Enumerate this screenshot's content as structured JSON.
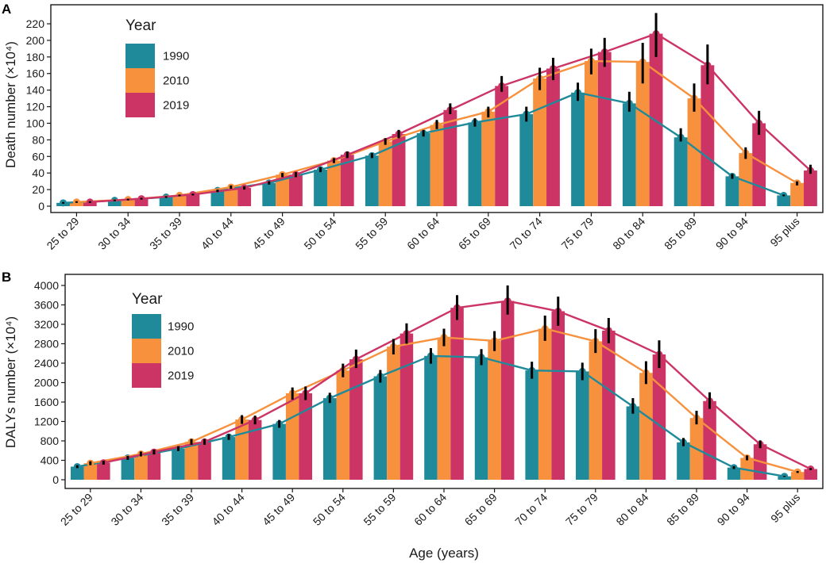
{
  "chart_data": [
    {
      "type": "bar",
      "panel": "A",
      "title": "",
      "xlabel": "",
      "ylabel": "Death number (×10⁴)",
      "ylim": [
        0,
        230
      ],
      "yticks": [
        0,
        20,
        40,
        60,
        80,
        100,
        120,
        140,
        160,
        180,
        200,
        220
      ],
      "categories": [
        "25 to 29",
        "30 to 34",
        "35 to 39",
        "40 to 44",
        "45 to 49",
        "50 to 54",
        "55 to 59",
        "60 to 64",
        "65 to 69",
        "70 to 74",
        "75 to 79",
        "80 to 84",
        "85 to 89",
        "90 to 94",
        "95 plus"
      ],
      "legend_title": "Year",
      "legend_position": "top-left",
      "series": [
        {
          "name": "1990",
          "color": "#1f8a9a",
          "values": [
            4,
            7,
            11,
            19,
            28,
            44,
            61,
            88,
            101,
            111,
            137,
            124,
            83,
            36,
            13
          ],
          "lower": [
            3,
            6,
            10,
            17,
            26,
            41,
            58,
            84,
            96,
            102,
            127,
            114,
            78,
            33,
            12
          ],
          "upper": [
            5,
            8,
            12,
            20,
            30,
            47,
            64,
            92,
            106,
            120,
            149,
            138,
            94,
            39,
            14
          ]
        },
        {
          "name": "2010",
          "color": "#f7913d",
          "values": [
            5,
            8,
            13,
            23,
            38,
            55,
            78,
            98,
            114,
            154,
            175,
            174,
            130,
            64,
            28
          ],
          "lower": [
            4,
            7,
            12,
            21,
            35,
            52,
            74,
            93,
            107,
            140,
            159,
            148,
            114,
            57,
            25
          ],
          "upper": [
            6,
            9,
            14,
            25,
            40,
            58,
            82,
            104,
            120,
            167,
            190,
            197,
            148,
            71,
            30
          ]
        },
        {
          "name": "2019",
          "color": "#cd3466",
          "values": [
            5,
            9,
            14,
            22,
            38,
            62,
            87,
            116,
            145,
            166,
            186,
            208,
            170,
            100,
            43
          ],
          "lower": [
            4,
            8,
            13,
            20,
            35,
            58,
            82,
            111,
            138,
            152,
            168,
            180,
            147,
            86,
            39
          ],
          "upper": [
            6,
            10,
            15,
            24,
            41,
            66,
            92,
            124,
            157,
            179,
            203,
            233,
            195,
            115,
            50
          ]
        }
      ]
    },
    {
      "type": "bar",
      "panel": "B",
      "title": "",
      "xlabel": "Age (years)",
      "ylabel": "DALYs number (×10⁴)",
      "ylim": [
        0,
        4100
      ],
      "yticks": [
        0,
        400,
        800,
        1200,
        1600,
        2000,
        2400,
        2800,
        3200,
        3600,
        4000
      ],
      "categories": [
        "25 to 29",
        "30 to 34",
        "35 to 39",
        "40 to 44",
        "45 to 49",
        "50 to 54",
        "55 to 59",
        "60 to 64",
        "65 to 69",
        "70 to 74",
        "75 to 79",
        "80 to 84",
        "85 to 89",
        "90 to 94",
        "95 plus"
      ],
      "legend_title": "Year",
      "legend_position": "top-left",
      "series": [
        {
          "name": "1990",
          "color": "#1f8a9a",
          "values": [
            270,
            450,
            640,
            880,
            1150,
            1680,
            2130,
            2550,
            2520,
            2250,
            2230,
            1510,
            770,
            250,
            70
          ],
          "lower": [
            240,
            410,
            590,
            820,
            1070,
            1580,
            2000,
            2390,
            2360,
            2080,
            2050,
            1360,
            690,
            220,
            60
          ],
          "upper": [
            300,
            490,
            690,
            940,
            1230,
            1790,
            2260,
            2710,
            2690,
            2430,
            2410,
            1680,
            860,
            280,
            80
          ]
        },
        {
          "name": "2010",
          "color": "#f7913d",
          "values": [
            340,
            530,
            780,
            1240,
            1780,
            2250,
            2740,
            2930,
            2860,
            3110,
            2850,
            2200,
            1270,
            450,
            160
          ],
          "lower": [
            300,
            480,
            720,
            1150,
            1650,
            2110,
            2580,
            2750,
            2650,
            2860,
            2610,
            1970,
            1140,
            400,
            140
          ],
          "upper": [
            380,
            580,
            840,
            1330,
            1900,
            2390,
            2900,
            3110,
            3060,
            3380,
            3100,
            2440,
            1420,
            500,
            180
          ]
        },
        {
          "name": "2019",
          "color": "#cd3466",
          "values": [
            350,
            570,
            780,
            1230,
            1780,
            2480,
            3010,
            3540,
            3680,
            3470,
            3070,
            2580,
            1620,
            730,
            220
          ],
          "lower": [
            310,
            520,
            720,
            1140,
            1640,
            2300,
            2800,
            3290,
            3400,
            3170,
            2810,
            2300,
            1460,
            650,
            200
          ],
          "upper": [
            390,
            620,
            840,
            1320,
            1920,
            2680,
            3220,
            3800,
            4000,
            3770,
            3330,
            2870,
            1800,
            810,
            240
          ]
        }
      ]
    }
  ]
}
